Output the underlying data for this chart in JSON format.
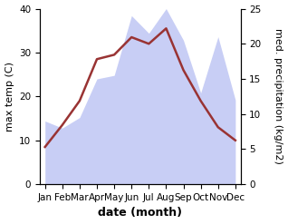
{
  "months": [
    "Jan",
    "Feb",
    "Mar",
    "Apr",
    "May",
    "Jun",
    "Jul",
    "Aug",
    "Sep",
    "Oct",
    "Nov",
    "Dec"
  ],
  "month_positions": [
    0,
    1,
    2,
    3,
    4,
    5,
    6,
    7,
    8,
    9,
    10,
    11
  ],
  "max_temp": [
    8.5,
    13.5,
    19.0,
    28.5,
    29.5,
    33.5,
    32.0,
    35.5,
    26.0,
    19.0,
    13.0,
    10.0
  ],
  "precipitation": [
    9.0,
    8.0,
    9.5,
    15.0,
    15.5,
    24.0,
    21.5,
    25.0,
    20.5,
    13.0,
    21.0,
    12.0
  ],
  "temp_color": "#993333",
  "precip_fill_color": "#c8cef5",
  "ylim_temp": [
    0,
    40
  ],
  "ylim_precip": [
    0,
    25
  ],
  "ylabel_left": "max temp (C)",
  "ylabel_right": "med. precipitation (kg/m2)",
  "xlabel": "date (month)",
  "xlabel_fontsize": 9,
  "ylabel_fontsize": 8,
  "tick_fontsize": 7.5,
  "fig_width": 3.18,
  "fig_height": 2.47,
  "dpi": 100
}
